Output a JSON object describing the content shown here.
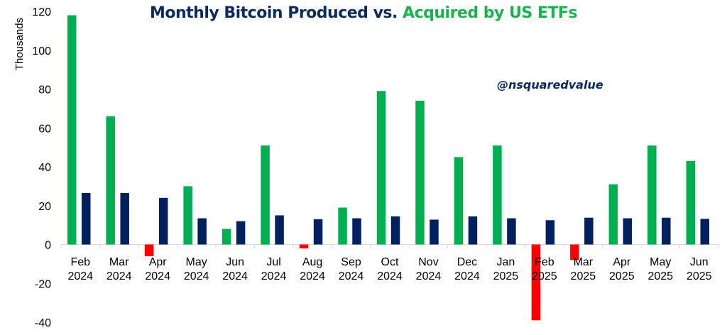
{
  "title": {
    "part1": "Monthly Bitcoin Produced",
    "part2": " vs. ",
    "part3": "Acquired by US ETFs"
  },
  "watermark": "@nsquaredvalue",
  "colors": {
    "acquired_positive": "#00b050",
    "acquired_negative": "#ff0000",
    "produced": "#002060",
    "title_dark": "#0b2a5e",
    "title_green": "#19b24b"
  },
  "chart_data": {
    "type": "bar",
    "ylabel": "Thousands",
    "ylim": [
      -40,
      120
    ],
    "yticks": [
      -40,
      -20,
      0,
      20,
      40,
      60,
      80,
      100,
      120
    ],
    "categories": [
      [
        "Feb",
        "2024"
      ],
      [
        "Mar",
        "2024"
      ],
      [
        "Apr",
        "2024"
      ],
      [
        "May",
        "2024"
      ],
      [
        "Jun",
        "2024"
      ],
      [
        "Jul",
        "2024"
      ],
      [
        "Aug",
        "2024"
      ],
      [
        "Sep",
        "2024"
      ],
      [
        "Oct",
        "2024"
      ],
      [
        "Nov",
        "2024"
      ],
      [
        "Dec",
        "2024"
      ],
      [
        "Jan",
        "2025"
      ],
      [
        "Feb",
        "2025"
      ],
      [
        "Mar",
        "2025"
      ],
      [
        "Apr",
        "2025"
      ],
      [
        "May",
        "2025"
      ],
      [
        "Jun",
        "2025"
      ]
    ],
    "series": [
      {
        "name": "Acquired by US ETFs",
        "values": [
          118,
          66,
          -6,
          30,
          8,
          51,
          -2,
          19,
          79,
          74,
          45,
          51,
          -39,
          -8,
          31,
          51,
          43
        ]
      },
      {
        "name": "Monthly Bitcoin Produced",
        "values": [
          26.5,
          26.5,
          24,
          13.5,
          12,
          15,
          13,
          13.5,
          14.5,
          12.8,
          14.5,
          13.5,
          12.5,
          13.8,
          13.5,
          13.8,
          13.2
        ]
      }
    ],
    "grid": false
  }
}
